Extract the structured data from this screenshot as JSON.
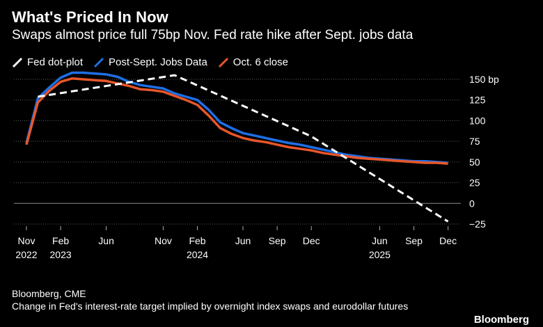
{
  "header": {
    "title": "What's Priced In Now",
    "subtitle": "Swaps almost price full 75bp Nov. Fed rate hike after Sept. jobs data"
  },
  "footer": {
    "source": "Bloomberg, CME",
    "note": "Change in Fed's interest-rate target implied by overnight index swaps and eurodollar futures",
    "brand": "Bloomberg"
  },
  "chart_data": {
    "type": "line",
    "ylim": [
      -25,
      150
    ],
    "yticks": [
      -25,
      0,
      25,
      50,
      75,
      100,
      125,
      150
    ],
    "ytick_labels": [
      "−25",
      "0",
      "25",
      "50",
      "75",
      "100",
      "125",
      "150 bp"
    ],
    "xlim": [
      0,
      38
    ],
    "xticks": [
      {
        "x": 0,
        "line1": "Nov",
        "line2": "2022"
      },
      {
        "x": 3,
        "line1": "Feb",
        "line2": "2023"
      },
      {
        "x": 7,
        "line1": "Jun",
        "line2": ""
      },
      {
        "x": 12,
        "line1": "Nov",
        "line2": ""
      },
      {
        "x": 15,
        "line1": "Feb",
        "line2": "2024"
      },
      {
        "x": 19,
        "line1": "Jun",
        "line2": ""
      },
      {
        "x": 22,
        "line1": "Sep",
        "line2": ""
      },
      {
        "x": 25,
        "line1": "Dec",
        "line2": ""
      },
      {
        "x": 31,
        "line1": "Jun",
        "line2": "2025"
      },
      {
        "x": 34,
        "line1": "Sep",
        "line2": ""
      },
      {
        "x": 37,
        "line1": "Dec",
        "line2": ""
      }
    ],
    "legend_position": "top-left",
    "series": [
      {
        "name": "Fed dot-plot",
        "color": "#ffffff",
        "style": "dashed",
        "x": [
          1,
          13,
          25,
          37
        ],
        "values": [
          129,
          155,
          81,
          -22
        ]
      },
      {
        "name": "Post-Sept. Jobs Data",
        "color": "#1f6fe6",
        "style": "solid",
        "x": [
          0,
          1,
          2,
          3,
          4,
          5,
          6,
          7,
          8,
          9,
          10,
          11,
          12,
          13,
          14,
          15,
          16,
          17,
          18,
          19,
          20,
          21,
          22,
          23,
          24,
          25,
          26,
          27,
          28,
          29,
          30,
          31,
          32,
          33,
          34,
          35,
          36,
          37
        ],
        "values": [
          73,
          127,
          140,
          152,
          158,
          158,
          157,
          156,
          153,
          147,
          143,
          141,
          139,
          133,
          129,
          125,
          113,
          98,
          91,
          85,
          82,
          79,
          76,
          73,
          71,
          68,
          65,
          62,
          59,
          57,
          55,
          54,
          53,
          52,
          51,
          51,
          50,
          49
        ]
      },
      {
        "name": "Oct. 6 close",
        "color": "#e8562a",
        "style": "solid",
        "x": [
          0,
          1,
          2,
          3,
          4,
          5,
          6,
          7,
          8,
          9,
          10,
          11,
          12,
          13,
          14,
          15,
          16,
          17,
          18,
          19,
          20,
          21,
          22,
          23,
          24,
          25,
          26,
          27,
          28,
          29,
          30,
          31,
          32,
          33,
          34,
          35,
          36,
          37
        ],
        "values": [
          71,
          122,
          136,
          147,
          151,
          150,
          149,
          148,
          145,
          142,
          138,
          137,
          135,
          130,
          125,
          119,
          106,
          91,
          84,
          79,
          76,
          74,
          71,
          68,
          66,
          64,
          61,
          59,
          57,
          55,
          54,
          53,
          52,
          51,
          50,
          49,
          49,
          48
        ]
      }
    ]
  }
}
